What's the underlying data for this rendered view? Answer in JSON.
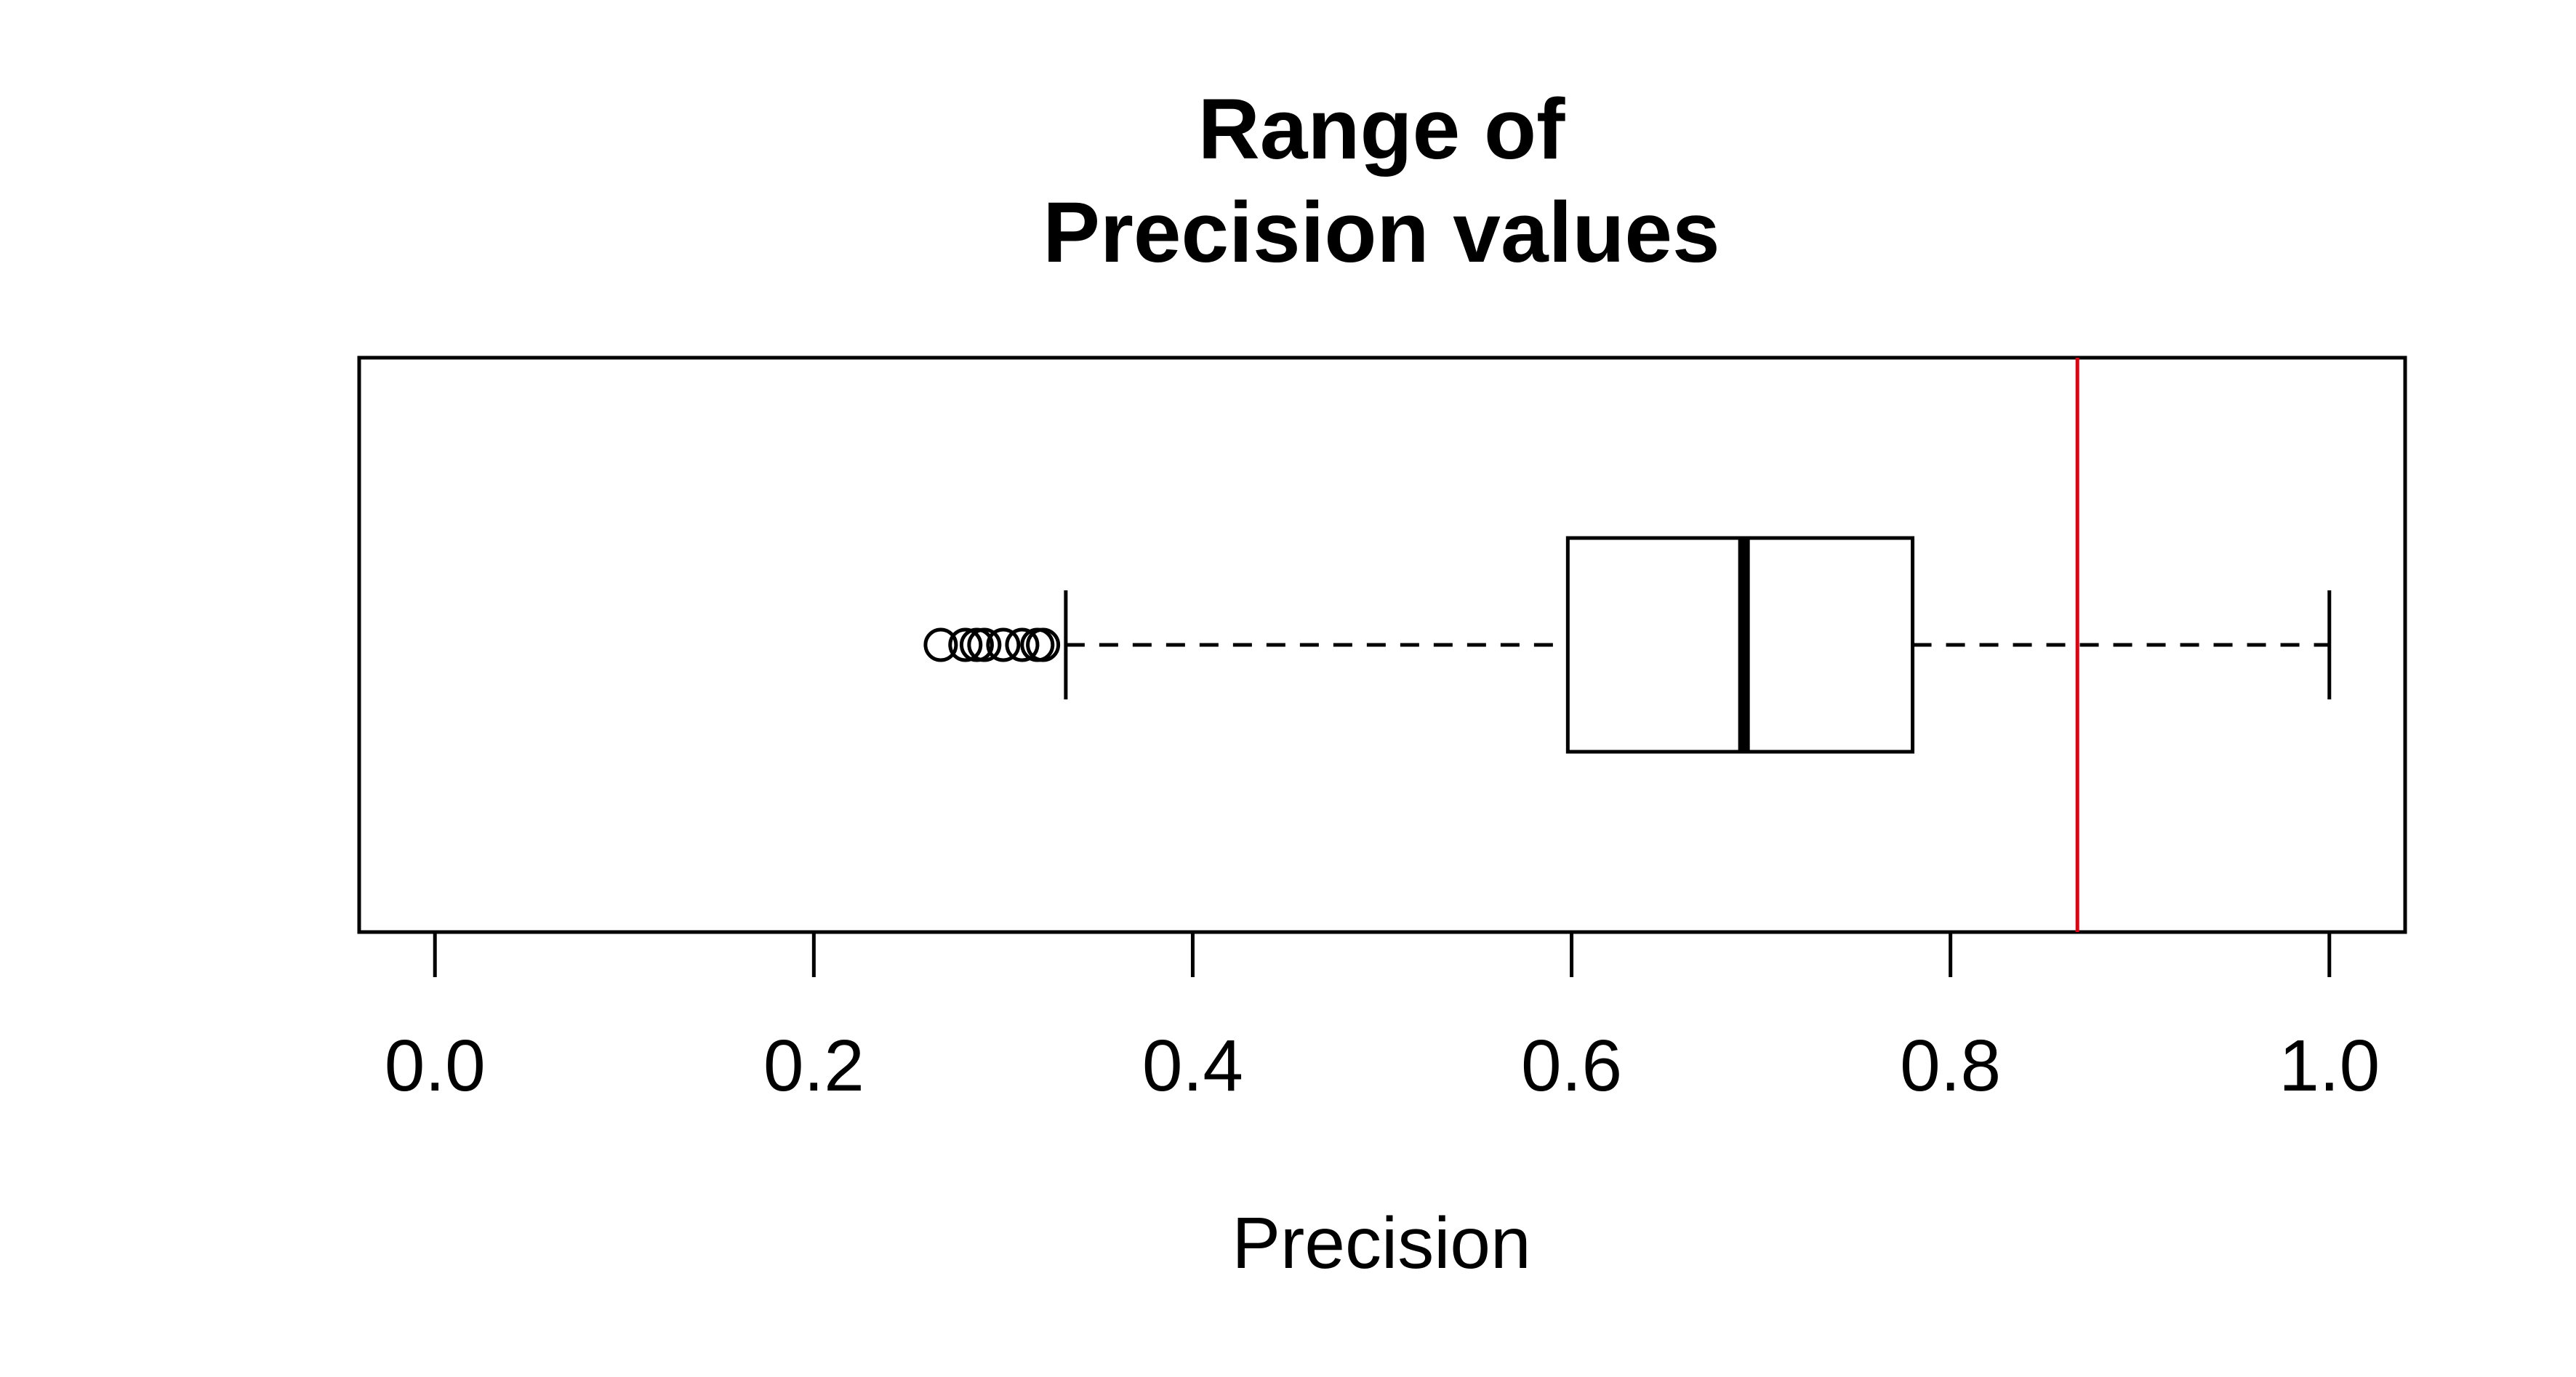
{
  "chart_data": {
    "type": "boxplot",
    "orientation": "horizontal",
    "title_lines": [
      "Range of",
      "Precision values"
    ],
    "xlabel": "Precision",
    "ylabel": "",
    "xlim": [
      -0.04,
      1.04
    ],
    "x_ticks": [
      0.0,
      0.2,
      0.4,
      0.6,
      0.8,
      1.0
    ],
    "x_tick_labels": [
      "0.0",
      "0.2",
      "0.4",
      "0.6",
      "0.8",
      "1.0"
    ],
    "grid": false,
    "legend": "none",
    "box": {
      "whisker_low": 0.333,
      "q1": 0.598,
      "median": 0.691,
      "q3": 0.78,
      "whisker_high": 1.0,
      "outliers": [
        0.267,
        0.28,
        0.286,
        0.29,
        0.3,
        0.31,
        0.318,
        0.321
      ]
    },
    "reference_line": {
      "x": 0.867,
      "color": "#e0000e"
    },
    "colors": {
      "box_stroke": "#000000",
      "median": "#000000",
      "outlier_stroke": "#000000"
    }
  }
}
